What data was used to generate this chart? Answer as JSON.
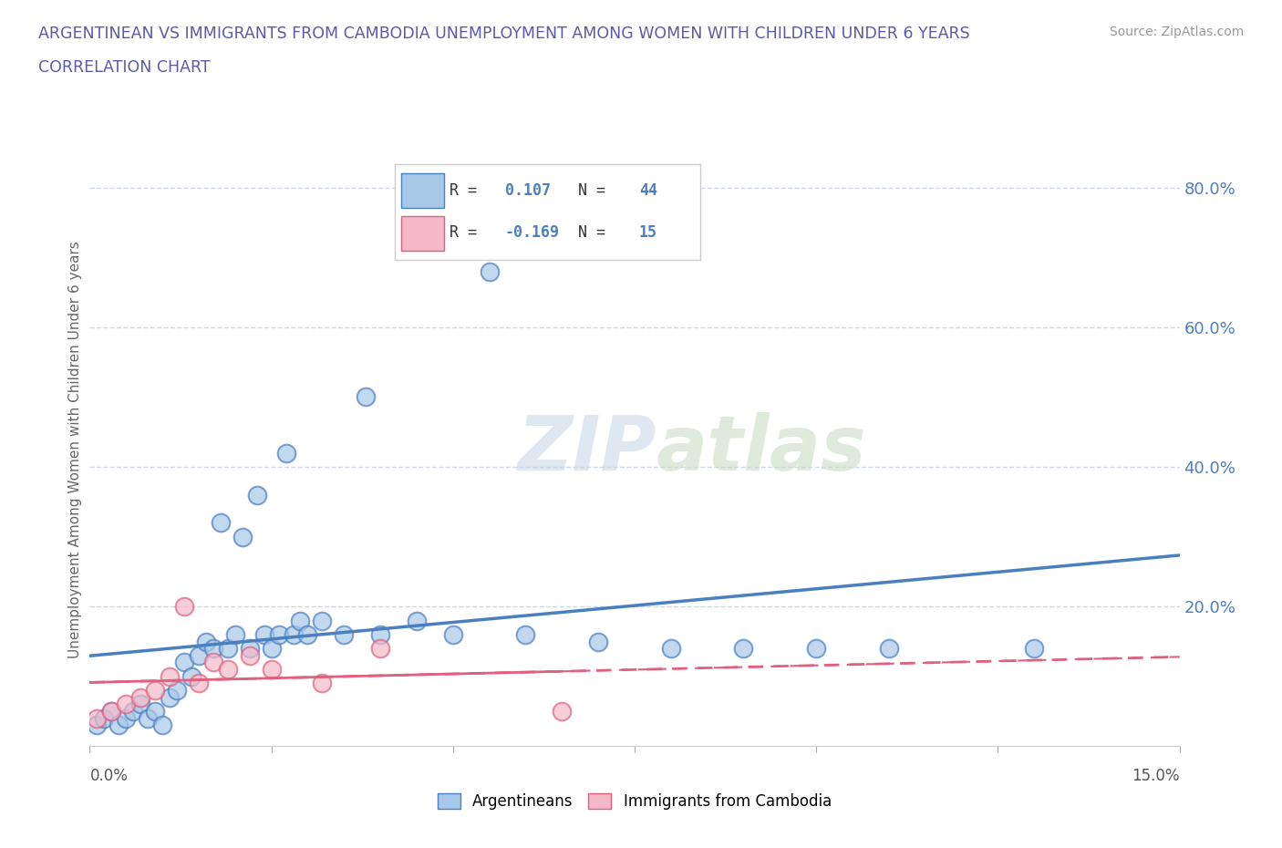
{
  "title_line1": "ARGENTINEAN VS IMMIGRANTS FROM CAMBODIA UNEMPLOYMENT AMONG WOMEN WITH CHILDREN UNDER 6 YEARS",
  "title_line2": "CORRELATION CHART",
  "source": "Source: ZipAtlas.com",
  "ylabel_label": "Unemployment Among Women with Children Under 6 years",
  "r_blue": 0.107,
  "n_blue": 44,
  "r_pink": -0.169,
  "n_pink": 15,
  "color_blue": "#a8c8e8",
  "color_pink": "#f4b8c8",
  "color_blue_line": "#4a7fc0",
  "color_pink_line": "#e06080",
  "watermark_zip": "ZIP",
  "watermark_atlas": "atlas",
  "blue_scatter_x": [
    0.001,
    0.002,
    0.003,
    0.004,
    0.005,
    0.006,
    0.007,
    0.008,
    0.009,
    0.01,
    0.011,
    0.012,
    0.013,
    0.014,
    0.015,
    0.016,
    0.017,
    0.018,
    0.019,
    0.02,
    0.021,
    0.022,
    0.023,
    0.024,
    0.025,
    0.026,
    0.027,
    0.028,
    0.029,
    0.03,
    0.032,
    0.035,
    0.038,
    0.04,
    0.045,
    0.05,
    0.055,
    0.06,
    0.07,
    0.08,
    0.09,
    0.1,
    0.11,
    0.13
  ],
  "blue_scatter_y": [
    0.03,
    0.04,
    0.05,
    0.03,
    0.04,
    0.05,
    0.06,
    0.04,
    0.05,
    0.03,
    0.07,
    0.08,
    0.12,
    0.1,
    0.13,
    0.15,
    0.14,
    0.32,
    0.14,
    0.16,
    0.3,
    0.14,
    0.36,
    0.16,
    0.14,
    0.16,
    0.42,
    0.16,
    0.18,
    0.16,
    0.18,
    0.16,
    0.5,
    0.16,
    0.18,
    0.16,
    0.68,
    0.16,
    0.15,
    0.14,
    0.14,
    0.14,
    0.14,
    0.14
  ],
  "pink_scatter_x": [
    0.001,
    0.003,
    0.005,
    0.007,
    0.009,
    0.011,
    0.013,
    0.015,
    0.017,
    0.019,
    0.022,
    0.025,
    0.032,
    0.04,
    0.065
  ],
  "pink_scatter_y": [
    0.04,
    0.05,
    0.06,
    0.07,
    0.08,
    0.1,
    0.2,
    0.09,
    0.12,
    0.11,
    0.13,
    0.11,
    0.09,
    0.14,
    0.05
  ],
  "xlim": [
    0.0,
    0.15
  ],
  "ylim": [
    0.0,
    0.85
  ],
  "yticks": [
    0.2,
    0.4,
    0.6,
    0.8
  ],
  "ytick_labels": [
    "20.0%",
    "40.0%",
    "60.0%",
    "80.0%"
  ],
  "xticks": [
    0.0,
    0.025,
    0.05,
    0.075,
    0.1,
    0.125,
    0.15
  ],
  "grid_color": "#d0d8e8",
  "background_color": "#ffffff",
  "title_color": "#5a5aaa",
  "source_color": "#999999"
}
